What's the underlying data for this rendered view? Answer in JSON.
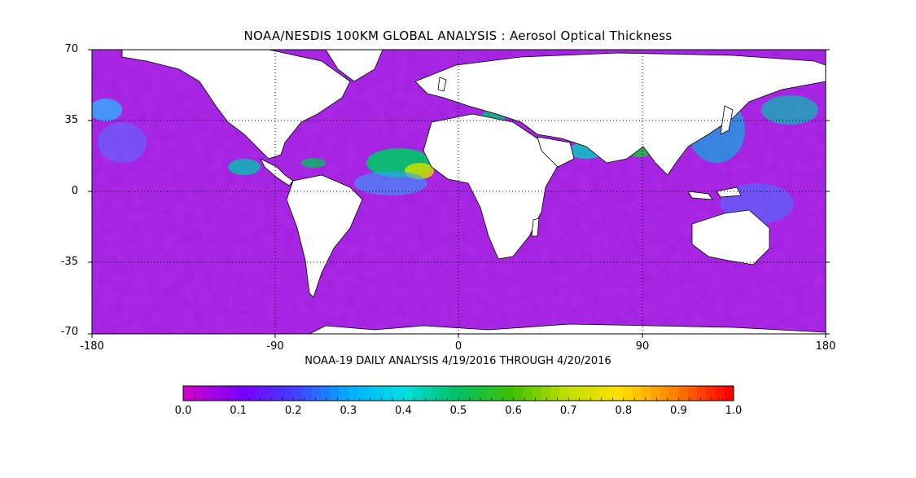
{
  "title": "NOAA/NESDIS 100KM GLOBAL ANALYSIS :  Aerosol Optical Thickness",
  "subtitle": "NOAA-19 DAILY ANALYSIS  4/19/2016 THROUGH 4/20/2016",
  "map": {
    "lat_ticks": [
      "70",
      "35",
      "0",
      "-35",
      "-70"
    ],
    "lon_ticks": [
      "-180",
      "-90",
      "0",
      "90",
      "180"
    ],
    "lat_range": [
      -70,
      70
    ],
    "lon_range": [
      -180,
      180
    ],
    "gridlines": "dotted"
  },
  "colorbar": {
    "min": 0.0,
    "max": 1.0,
    "labels": [
      "0.0",
      "0.1",
      "0.2",
      "0.3",
      "0.4",
      "0.5",
      "0.6",
      "0.7",
      "0.8",
      "0.9",
      "1.0"
    ],
    "colors": [
      "#cc00cc",
      "#7a00ff",
      "#4040ff",
      "#00b0ff",
      "#00e0e0",
      "#00c060",
      "#40c000",
      "#c0e000",
      "#ffe000",
      "#ff8000",
      "#ff0000"
    ]
  },
  "background_color": "#a020e0",
  "land_color": "#ffffff"
}
